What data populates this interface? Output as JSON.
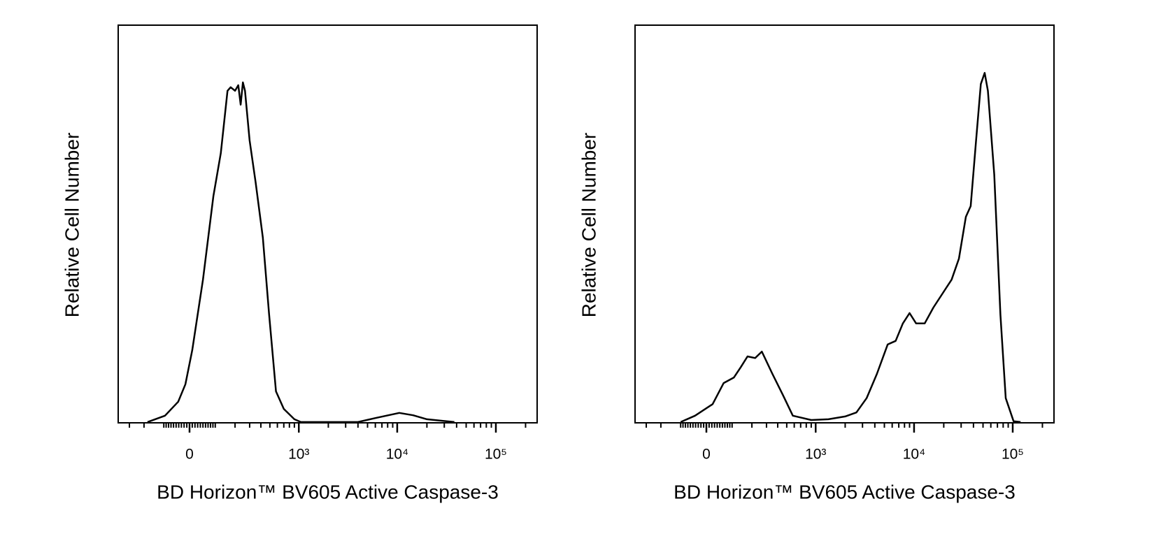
{
  "chart_data": [
    {
      "type": "line",
      "xscale": "biexponential",
      "color": "#000000",
      "xlabel": "BD Horizon™ BV605 Active Caspase-3",
      "ylabel": "Relative Cell Number",
      "xlim": [
        -400,
        262000
      ],
      "ylim": [
        0,
        100
      ],
      "xticks": [
        0,
        {
          "value": 1000,
          "label": "10³"
        },
        {
          "value": 10000,
          "label": "10⁴"
        },
        {
          "value": 100000,
          "label": "10⁵"
        }
      ],
      "xminorticks": [
        -300,
        -200,
        -100,
        -90,
        -80,
        -70,
        -60,
        -50,
        -40,
        -30,
        -20,
        -10,
        10,
        20,
        30,
        40,
        50,
        60,
        70,
        80,
        90,
        100,
        200,
        300,
        400,
        500,
        600,
        700,
        800,
        900,
        2000,
        3000,
        4000,
        5000,
        6000,
        7000,
        8000,
        9000,
        20000,
        30000,
        40000,
        50000,
        60000,
        70000,
        80000,
        90000,
        200000
      ],
      "x": [
        -180,
        -95,
        -42,
        -15,
        10,
        50,
        92,
        125,
        158,
        175,
        200,
        220,
        235,
        250,
        265,
        300,
        350,
        420,
        490,
        580,
        700,
        900,
        1050,
        4000,
        6000,
        10500,
        14500,
        20000,
        38000
      ],
      "values": [
        0.2,
        1.8,
        5.3,
        9.7,
        18.3,
        36,
        57,
        67.8,
        83.5,
        84.4,
        83.5,
        84.9,
        80,
        85.6,
        83.5,
        71,
        60.6,
        46.6,
        27.4,
        7.9,
        3.5,
        0.9,
        0.2,
        0.2,
        1.2,
        2.5,
        1.9,
        0.9,
        0.2
      ]
    },
    {
      "type": "line",
      "xscale": "biexponential",
      "color": "#000000",
      "xlabel": "BD Horizon™ BV605 Active Caspase-3",
      "ylabel": "Relative Cell Number",
      "xlim": [
        -400,
        262000
      ],
      "ylim": [
        0,
        100
      ],
      "xticks": [
        0,
        {
          "value": 1000,
          "label": "10³"
        },
        {
          "value": 10000,
          "label": "10⁴"
        },
        {
          "value": 100000,
          "label": "10⁵"
        }
      ],
      "xminorticks": [
        -300,
        -200,
        -100,
        -90,
        -80,
        -70,
        -60,
        -50,
        -40,
        -30,
        -20,
        -10,
        10,
        20,
        30,
        40,
        50,
        60,
        70,
        80,
        90,
        100,
        200,
        300,
        400,
        500,
        600,
        700,
        800,
        900,
        2000,
        3000,
        4000,
        5000,
        6000,
        7000,
        8000,
        9000,
        20000,
        30000,
        40000,
        50000,
        60000,
        70000,
        80000,
        90000,
        200000
      ],
      "x": [
        -100,
        -42,
        23,
        65,
        108,
        140,
        175,
        220,
        265,
        350,
        455,
        580,
        900,
        1350,
        2000,
        2600,
        3300,
        4200,
        5400,
        6500,
        7700,
        9000,
        10500,
        12800,
        15700,
        20500,
        24000,
        28500,
        33500,
        37500,
        42500,
        47500,
        52000,
        56000,
        65000,
        75000,
        85000,
        102000,
        120000
      ],
      "values": [
        0.2,
        1.8,
        4.7,
        10,
        11.4,
        14,
        16.7,
        16.3,
        17.9,
        12.3,
        7,
        1.8,
        0.7,
        0.9,
        1.6,
        2.6,
        6.2,
        12.3,
        19.7,
        20.6,
        25,
        27.6,
        25,
        25,
        29,
        33.4,
        36,
        41.3,
        51.8,
        54.5,
        71,
        85.2,
        88,
        83.5,
        62.4,
        27.2,
        6.2,
        0.4,
        0.2
      ]
    }
  ]
}
